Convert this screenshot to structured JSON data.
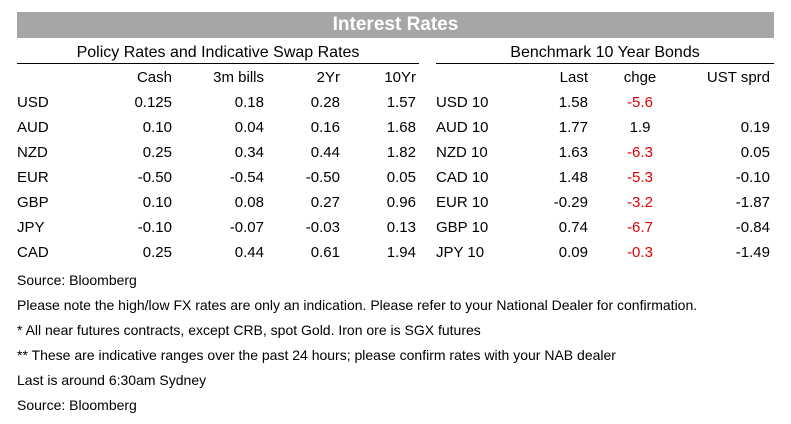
{
  "title": "Interest Rates",
  "policy": {
    "heading": "Policy Rates and Indicative Swap Rates",
    "columns": [
      "Cash",
      "3m bills",
      "2Yr",
      "10Yr"
    ],
    "rows": [
      {
        "ccy": "USD",
        "cash": "0.125",
        "bills": "0.18",
        "y2": "0.28",
        "y10": "1.57"
      },
      {
        "ccy": "AUD",
        "cash": "0.10",
        "bills": "0.04",
        "y2": "0.16",
        "y10": "1.68"
      },
      {
        "ccy": "NZD",
        "cash": "0.25",
        "bills": "0.34",
        "y2": "0.44",
        "y10": "1.82"
      },
      {
        "ccy": "EUR",
        "cash": "-0.50",
        "bills": "-0.54",
        "y2": "-0.50",
        "y10": "0.05"
      },
      {
        "ccy": "GBP",
        "cash": "0.10",
        "bills": "0.08",
        "y2": "0.27",
        "y10": "0.96"
      },
      {
        "ccy": "JPY",
        "cash": "-0.10",
        "bills": "-0.07",
        "y2": "-0.03",
        "y10": "0.13"
      },
      {
        "ccy": "CAD",
        "cash": "0.25",
        "bills": "0.44",
        "y2": "0.61",
        "y10": "1.94"
      }
    ]
  },
  "bonds": {
    "heading": "Benchmark 10 Year Bonds",
    "columns": [
      "Last",
      "chge",
      "UST sprd"
    ],
    "rows": [
      {
        "name": "USD 10",
        "last": "1.58",
        "chge": "-5.6",
        "sprd": ""
      },
      {
        "name": "AUD 10",
        "last": "1.77",
        "chge": "1.9",
        "sprd": "0.19"
      },
      {
        "name": "NZD 10",
        "last": "1.63",
        "chge": "-6.3",
        "sprd": "0.05"
      },
      {
        "name": "CAD 10",
        "last": "1.48",
        "chge": "-5.3",
        "sprd": "-0.10"
      },
      {
        "name": "EUR 10",
        "last": "-0.29",
        "chge": "-3.2",
        "sprd": "-1.87"
      },
      {
        "name": "GBP 10",
        "last": "0.74",
        "chge": "-6.7",
        "sprd": "-0.84"
      },
      {
        "name": "JPY 10",
        "last": "0.09",
        "chge": "-0.3",
        "sprd": "-1.49"
      }
    ],
    "negative_color": "#e00000"
  },
  "notes": [
    "Source: Bloomberg",
    "Please note the high/low FX rates are only an indication. Please refer to your National Dealer for confirmation.",
    "* All near futures contracts, except CRB, spot Gold.  Iron ore is SGX futures",
    "** These are indicative ranges over the past 24 hours; please confirm rates with your NAB dealer",
    "Last is around 6:30am Sydney",
    "Source: Bloomberg"
  ]
}
